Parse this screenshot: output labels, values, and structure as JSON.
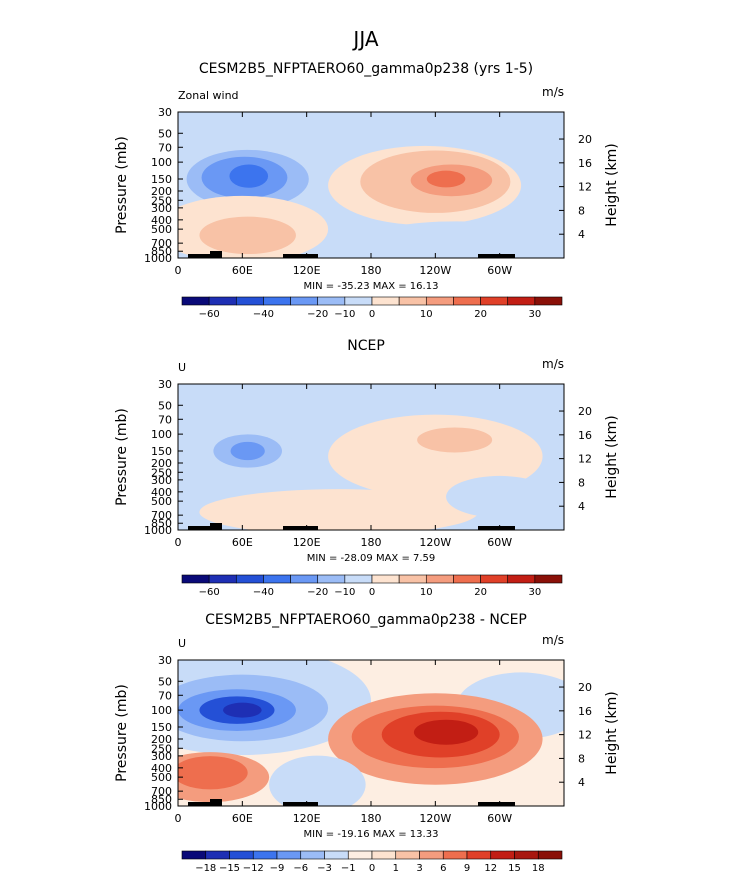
{
  "figure_title": "JJA",
  "chart_data": [
    {
      "type": "heatmap",
      "title": "CESM2B5_NFPTAERO60_gamma0p238 (yrs 1-5)",
      "left_label": "Zonal wind",
      "units": "m/s",
      "ylabel": "Pressure (mb)",
      "y2label": "Height (km)",
      "xticks": [
        "0",
        "60E",
        "120E",
        "180",
        "120W",
        "60W"
      ],
      "yticks": [
        "30",
        "50",
        "70",
        "100",
        "150",
        "200",
        "250",
        "300",
        "400",
        "500",
        "700",
        "850",
        "1000"
      ],
      "y2ticks": [
        "20",
        "16",
        "12",
        "8",
        "4"
      ],
      "stats": "MIN = -35.23   MAX =  16.13",
      "colorbar_labels": [
        "-60",
        "-40",
        "-20",
        "-10",
        "0",
        "10",
        "20",
        "30"
      ],
      "features": [
        {
          "kind": "blob",
          "value": -10,
          "lon": 70,
          "p": 150,
          "rx": 80,
          "rp": 0.95
        },
        {
          "kind": "blob",
          "value": -20,
          "lon": 65,
          "p": 150,
          "rx": 57,
          "rp": 0.7
        },
        {
          "kind": "blob",
          "value": -25,
          "lon": 62,
          "p": 145,
          "rx": 40,
          "rp": 0.5
        },
        {
          "kind": "blob",
          "value": -32,
          "lon": 66,
          "p": 140,
          "rx": 18,
          "rp": 0.28
        },
        {
          "kind": "blob",
          "value": 4,
          "lon": 230,
          "p": 175,
          "rx": 90,
          "rp": 0.95
        },
        {
          "kind": "blob",
          "value": 6,
          "lon": 240,
          "p": 160,
          "rx": 70,
          "rp": 0.75
        },
        {
          "kind": "blob",
          "value": 8,
          "lon": 245,
          "p": 160,
          "rx": 55,
          "rp": 0.55
        },
        {
          "kind": "blob",
          "value": 12,
          "lon": 255,
          "p": 155,
          "rx": 38,
          "rp": 0.38
        },
        {
          "kind": "blob",
          "value": 16,
          "lon": 250,
          "p": 150,
          "rx": 18,
          "rp": 0.2
        },
        {
          "kind": "blob",
          "value": 4,
          "lon": 60,
          "p": 500,
          "rx": 80,
          "rp": 0.8
        },
        {
          "kind": "blob",
          "value": 6,
          "lon": 65,
          "p": 580,
          "rx": 45,
          "rp": 0.45
        },
        {
          "kind": "blob",
          "value": -4,
          "lon": 260,
          "p": 650,
          "rx": 85,
          "rp": 0.45
        }
      ]
    },
    {
      "type": "heatmap",
      "title": "NCEP",
      "left_label": "U",
      "units": "m/s",
      "ylabel": "Pressure (mb)",
      "y2label": "Height (km)",
      "xticks": [
        "0",
        "60E",
        "120E",
        "180",
        "120W",
        "60W"
      ],
      "yticks": [
        "30",
        "50",
        "70",
        "100",
        "150",
        "200",
        "250",
        "300",
        "400",
        "500",
        "700",
        "850",
        "1000"
      ],
      "y2ticks": [
        "20",
        "16",
        "12",
        "8",
        "4"
      ],
      "stats": "MIN = -28.09   MAX =   7.59",
      "colorbar_labels": [
        "-60",
        "-40",
        "-20",
        "-10",
        "0",
        "10",
        "20",
        "30"
      ],
      "features": [
        {
          "kind": "blob",
          "value": -5,
          "lon": 70,
          "p": 170,
          "rx": 70,
          "rp": 0.9
        },
        {
          "kind": "blob",
          "value": -10,
          "lon": 68,
          "p": 160,
          "rx": 48,
          "rp": 0.6
        },
        {
          "kind": "blob",
          "value": -20,
          "lon": 65,
          "p": 150,
          "rx": 32,
          "rp": 0.4
        },
        {
          "kind": "blob",
          "value": -27,
          "lon": 65,
          "p": 150,
          "rx": 16,
          "rp": 0.22
        },
        {
          "kind": "blob",
          "value": 2,
          "lon": 240,
          "p": 170,
          "rx": 100,
          "rp": 1.0
        },
        {
          "kind": "blob",
          "value": 4,
          "lon": 245,
          "p": 130,
          "rx": 65,
          "rp": 0.55
        },
        {
          "kind": "blob",
          "value": 6,
          "lon": 258,
          "p": 115,
          "rx": 35,
          "rp": 0.3
        },
        {
          "kind": "blob",
          "value": 2,
          "lon": 150,
          "p": 650,
          "rx": 130,
          "rp": 0.55
        },
        {
          "kind": "blob",
          "value": -3,
          "lon": 300,
          "p": 450,
          "rx": 50,
          "rp": 0.5
        }
      ]
    },
    {
      "type": "heatmap",
      "title": "CESM2B5_NFPTAERO60_gamma0p238 - NCEP",
      "left_label": "U",
      "units": "m/s",
      "ylabel": "Pressure (mb)",
      "y2label": "Height (km)",
      "xticks": [
        "0",
        "60E",
        "120E",
        "180",
        "120W",
        "60W"
      ],
      "yticks": [
        "30",
        "50",
        "70",
        "100",
        "150",
        "200",
        "250",
        "300",
        "400",
        "500",
        "700",
        "850",
        "1000"
      ],
      "y2ticks": [
        "20",
        "16",
        "12",
        "8",
        "4"
      ],
      "stats": "MIN = -19.16   MAX =  13.33",
      "colorbar_labels": [
        "-18",
        "-15",
        "-12",
        "-9",
        "-6",
        "-3",
        "-1",
        "0",
        "1",
        "3",
        "6",
        "9",
        "12",
        "15",
        "18"
      ],
      "features": [
        {
          "kind": "blob",
          "value": -3,
          "lon": 60,
          "p": 80,
          "rx": 120,
          "rp": 1.3
        },
        {
          "kind": "blob",
          "value": -6,
          "lon": 60,
          "p": 95,
          "rx": 80,
          "rp": 0.8
        },
        {
          "kind": "blob",
          "value": -9,
          "lon": 55,
          "p": 100,
          "rx": 55,
          "rp": 0.5
        },
        {
          "kind": "blob",
          "value": -13,
          "lon": 55,
          "p": 100,
          "rx": 35,
          "rp": 0.33
        },
        {
          "kind": "blob",
          "value": -16,
          "lon": 60,
          "p": 100,
          "rx": 18,
          "rp": 0.18
        },
        {
          "kind": "blob",
          "value": -3,
          "lon": 320,
          "p": 90,
          "rx": 60,
          "rp": 0.8
        },
        {
          "kind": "blob",
          "value": 3,
          "lon": 240,
          "p": 200,
          "rx": 100,
          "rp": 1.1
        },
        {
          "kind": "blob",
          "value": 6,
          "lon": 240,
          "p": 190,
          "rx": 78,
          "rp": 0.75
        },
        {
          "kind": "blob",
          "value": 9,
          "lon": 245,
          "p": 180,
          "rx": 55,
          "rp": 0.55
        },
        {
          "kind": "blob",
          "value": 12,
          "lon": 250,
          "p": 170,
          "rx": 30,
          "rp": 0.3
        },
        {
          "kind": "blob",
          "value": 3,
          "lon": 30,
          "p": 500,
          "rx": 55,
          "rp": 0.6
        },
        {
          "kind": "blob",
          "value": 6,
          "lon": 30,
          "p": 450,
          "rx": 35,
          "rp": 0.4
        },
        {
          "kind": "blob",
          "value": -3,
          "lon": 130,
          "p": 600,
          "rx": 45,
          "rp": 0.7
        }
      ]
    }
  ]
}
